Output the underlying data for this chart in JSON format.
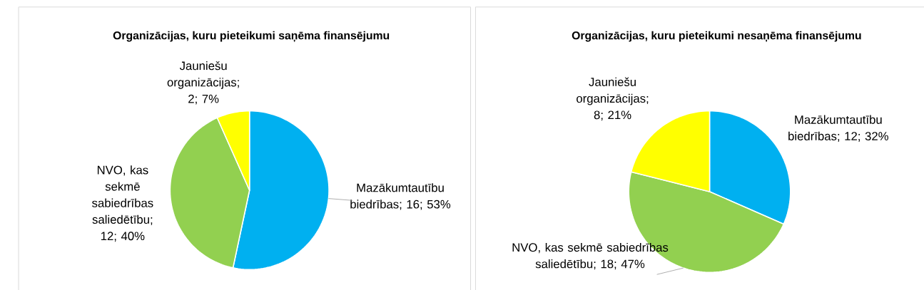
{
  "chart_data": [
    {
      "type": "pie",
      "title": "Organizācijas, kuru pieteikumi saņēma finansējumu",
      "categories": [
        null,
        null,
        null
      ],
      "values": [
        16,
        12,
        2
      ],
      "colors": [
        "#00b0f0",
        "#92d050",
        "#ffff00"
      ],
      "value_labels": [
        "Mazākumtautību biedrības; 16; 53%",
        "NVO, kas sekmē sabiedrības saliedētību; 12; 40%",
        "Jauniešu organizācijas; 2; 7%"
      ]
    },
    {
      "type": "pie",
      "title": "Organizācijas, kuru pieteikumi nesaņēma finansējumu",
      "categories": [
        null,
        null,
        null
      ],
      "values": [
        12,
        18,
        8
      ],
      "colors": [
        "#00b0f0",
        "#92d050",
        "#ffff00"
      ],
      "value_labels": [
        "Mazākumtautību biedrības; 12; 32%",
        "NVO, kas sekmē sabiedrības saliedētību; 18; 47%",
        "Jauniešu organizācijas; 8; 21%"
      ]
    }
  ]
}
